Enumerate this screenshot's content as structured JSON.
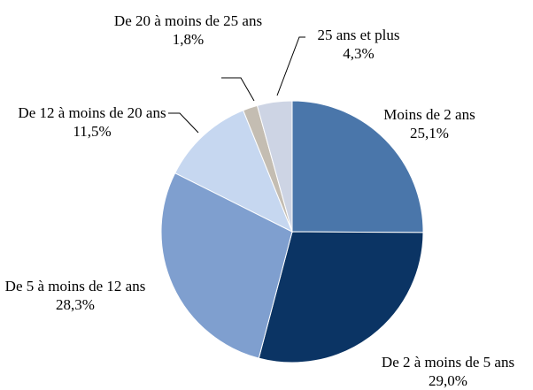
{
  "chart_data": {
    "type": "pie",
    "categories": [
      "Moins de 2 ans",
      "De 2 à moins de 5 ans",
      "De 5 à moins de 12 ans",
      "De 12 à moins de 20 ans",
      "De 20 à moins de 25 ans",
      "25 ans et plus"
    ],
    "values": [
      25.1,
      29.0,
      28.3,
      11.5,
      1.8,
      4.3
    ],
    "value_labels": [
      "25,1%",
      "29,0%",
      "28,3%",
      "11,5%",
      "1,8%",
      "4,3%"
    ],
    "colors": [
      "#4a76aa",
      "#0b3464",
      "#7f9fcf",
      "#c6d7f0",
      "#c4bdb2",
      "#cdd4e4"
    ]
  }
}
